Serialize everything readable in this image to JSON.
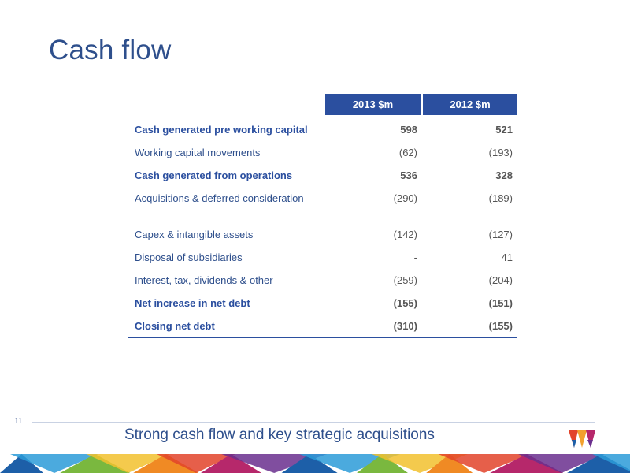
{
  "slide": {
    "title": "Cash flow",
    "page_number": "11",
    "tagline": "Strong cash flow and key strategic acquisitions"
  },
  "table": {
    "columns": [
      "2013 $m",
      "2012 $m"
    ],
    "rows": [
      {
        "label": "Cash generated pre working capital",
        "v2013": "598",
        "v2012": "521",
        "bold": true
      },
      {
        "label": "Working capital movements",
        "v2013": "(62)",
        "v2012": "(193)",
        "bold": false
      },
      {
        "label": "Cash generated from operations",
        "v2013": "536",
        "v2012": "328",
        "bold": true
      },
      {
        "label": "Acquisitions & deferred consideration",
        "v2013": "(290)",
        "v2012": "(189)",
        "bold": false
      },
      {
        "label": "Capex & intangible assets",
        "v2013": "(142)",
        "v2012": "(127)",
        "bold": false
      },
      {
        "label": "Disposal of subsidiaries",
        "v2013": "-",
        "v2012": "41",
        "bold": false
      },
      {
        "label": "Interest, tax, dividends & other",
        "v2013": "(259)",
        "v2012": "(204)",
        "bold": false
      },
      {
        "label": "Net increase in net debt",
        "v2013": "(155)",
        "v2012": "(151)",
        "bold": true
      },
      {
        "label": "Closing net debt",
        "v2013": "(310)",
        "v2012": "(155)",
        "bold": true
      }
    ]
  },
  "colors": {
    "title": "#2e4f8c",
    "header_bg": "#2b4f9f",
    "band": [
      "#1d5fa8",
      "#2b9bd8",
      "#7ab83f",
      "#f2c12e",
      "#f08a24",
      "#e2432a",
      "#b6286b",
      "#6a2f8e"
    ]
  },
  "icons": {
    "logo": "tricolor-w-logo"
  }
}
